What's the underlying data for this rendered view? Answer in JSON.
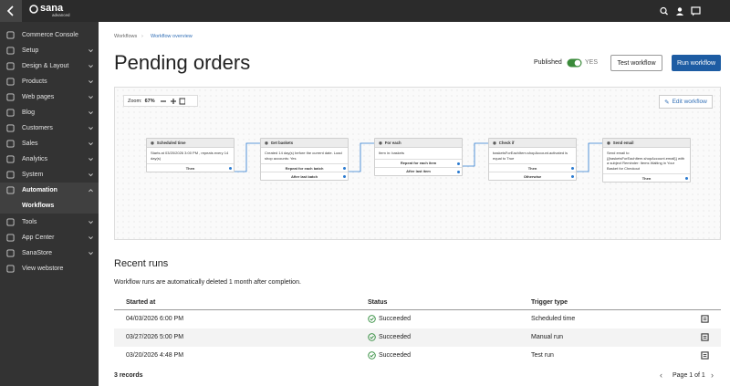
{
  "topbar": {
    "logo": "sana",
    "logo_sub": "advanced"
  },
  "sidebar": {
    "items": [
      "Commerce Console",
      "Setup",
      "Design & Layout",
      "Products",
      "Web pages",
      "Blog",
      "Customers",
      "Sales",
      "Analytics",
      "System",
      "Automation",
      "Tools",
      "App Center",
      "SanaStore",
      "View webstore"
    ],
    "sub_items": [
      "Workflows"
    ]
  },
  "breadcrumb": [
    "Workflows",
    "Workflow overview"
  ],
  "header": {
    "title": "Pending orders",
    "published_label": "Published",
    "published_value": "YES",
    "buttons": [
      "Test workflow",
      "Run workflow"
    ]
  },
  "canvas": {
    "zoom_label": "Zoom:",
    "zoom_value": "67%",
    "edit_button": "Edit workflow",
    "nodes": [
      {
        "title": "Scheduled time",
        "body": "Starts at 03/20/2026 3:00 PM , repeats every 14 day(s)",
        "ports": [
          "Then"
        ]
      },
      {
        "title": "Get baskets",
        "body": "Created 14 day(s) before the current date. Load shop accounts: Yes",
        "ports": [
          "Repeat for each batch",
          "After last batch"
        ]
      },
      {
        "title": "For each",
        "body": "Item in: baskets",
        "ports": [
          "Repeat for each item",
          "After last item"
        ]
      },
      {
        "title": "Check if",
        "body": "basketsForEachItem.shopAccount.activated is equal to True",
        "ports": [
          "Then",
          "Otherwise"
        ]
      },
      {
        "title": "Send email",
        "body": "Send email to {{basketsForEachItem.shopAccount.email}} with a subject Reminder: Items Waiting in Your Basket for Checkout",
        "ports": [
          "Then"
        ]
      }
    ]
  },
  "runs": {
    "title": "Recent runs",
    "note": "Workflow runs are automatically deleted 1 month after completion.",
    "columns": [
      "Started at",
      "Status",
      "Trigger type"
    ],
    "rows": [
      [
        "04/03/2026 6:00 PM",
        "Succeeded",
        "Scheduled time"
      ],
      [
        "03/27/2026 5:00 PM",
        "Succeeded",
        "Manual run"
      ],
      [
        "03/20/2026 4:48 PM",
        "Succeeded",
        "Test run"
      ]
    ],
    "records": "3 records",
    "pager": "Page 1 of 1"
  }
}
